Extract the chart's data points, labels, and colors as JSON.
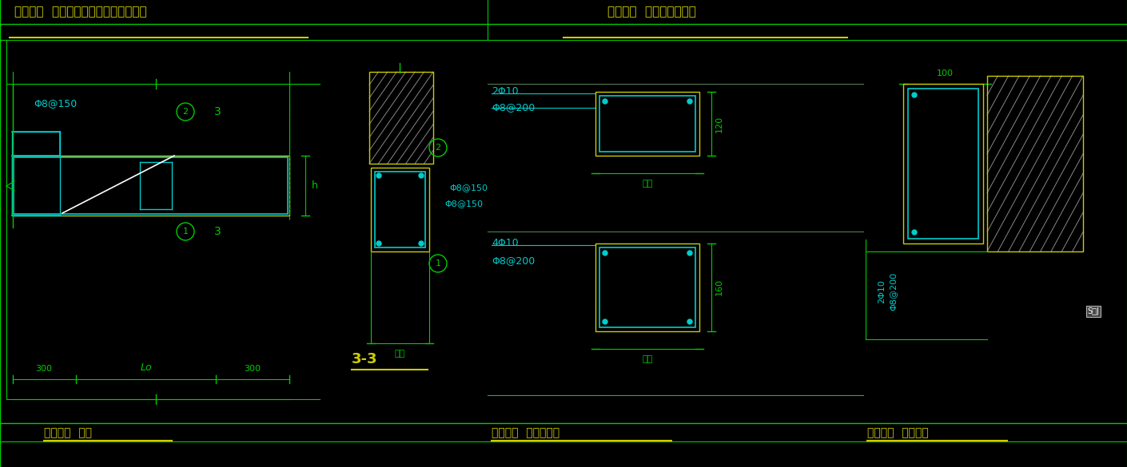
{
  "bg_color": "#000000",
  "title1": "图二十三  柱内预留现浇过梁、圈梁钉筋",
  "title2": "图二十五  洞口顶挂板处理",
  "subtitle1": "图二十四  过梁",
  "subtitle2": "图二十六  圈梁、压顶",
  "subtitle3": "图二十七  钉筋砂框",
  "title_color": "#CCCC00",
  "line_color": "#00CC00",
  "cyan_color": "#00CCCC",
  "yellow_color": "#CCCC00",
  "gray_color": "#888888",
  "white_color": "#FFFFFF"
}
